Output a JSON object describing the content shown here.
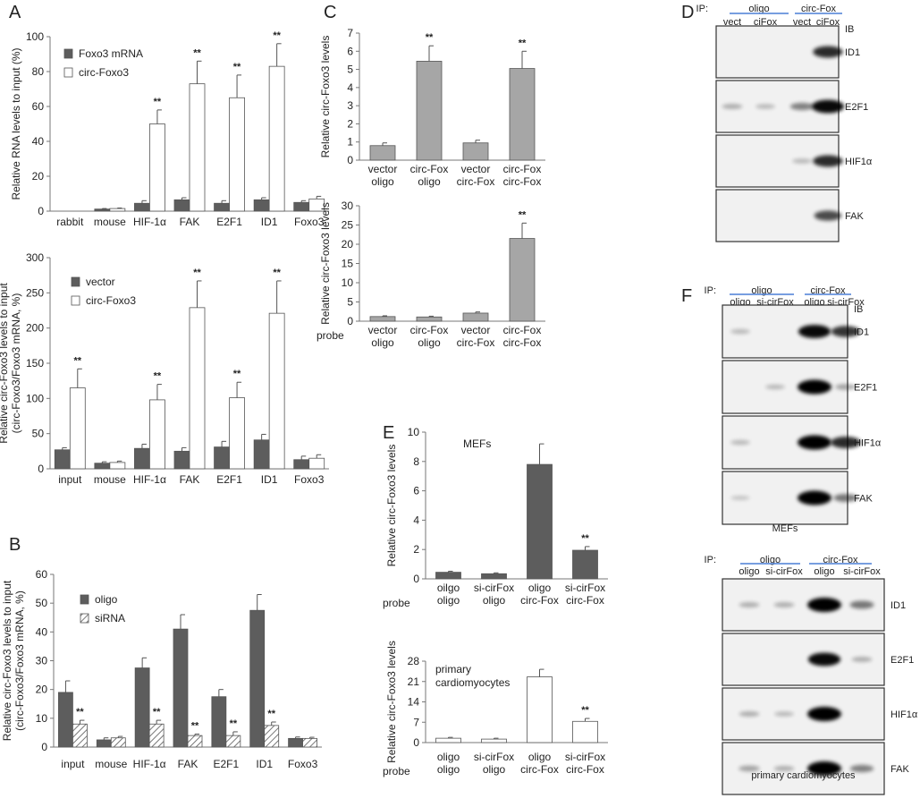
{
  "panels": {
    "A": "A",
    "B": "B",
    "C": "C",
    "D": "D",
    "E": "E",
    "F": "F"
  },
  "colors": {
    "dark_bar": "#5d5d5d",
    "light_bar": "#ffffff",
    "grey_bar": "#a6a6a6",
    "blot_bg": "#f1f1f1",
    "underline": "#4a7fd6"
  },
  "charts": [
    {
      "id": "A1",
      "type": "bar",
      "ylabel": "Relative RNA levels to input (%)",
      "ylim": [
        0,
        100
      ],
      "yticks": [
        0,
        20,
        40,
        60,
        80,
        100
      ],
      "categories": [
        "rabbit",
        "mouse",
        "HIF-1α",
        "FAK",
        "E2F1",
        "ID1",
        "Foxo3"
      ],
      "series": [
        {
          "name": "Foxo3 mRNA",
          "style": "dark",
          "values": [
            0,
            1.2,
            4.5,
            6.5,
            4.5,
            6.5,
            5
          ],
          "errors": [
            0,
            0.3,
            1.5,
            1.2,
            1.5,
            1.2,
            1
          ]
        },
        {
          "name": "circ-Foxo3",
          "style": "light",
          "values": [
            0,
            1.5,
            50,
            73,
            65,
            83,
            7
          ],
          "errors": [
            0,
            0.3,
            8,
            13,
            13,
            13,
            1.5
          ]
        }
      ],
      "sig": [
        "",
        "",
        "**",
        "**",
        "**",
        "**",
        ""
      ]
    },
    {
      "id": "A2",
      "type": "bar",
      "ylabel": "Relative circ-Foxo3 levels to input\n(circ-Foxo3/Foxo3 mRNA, %)",
      "ylim": [
        0,
        300
      ],
      "yticks": [
        0,
        50,
        100,
        150,
        200,
        250,
        300
      ],
      "categories": [
        "input",
        "mouse",
        "HIF-1α",
        "FAK",
        "E2F1",
        "ID1",
        "Foxo3"
      ],
      "series": [
        {
          "name": "vector",
          "style": "dark",
          "values": [
            27,
            8,
            29,
            25,
            31,
            41,
            13
          ],
          "errors": [
            3,
            2,
            6,
            5,
            8,
            8,
            5
          ]
        },
        {
          "name": "circ-Foxo3",
          "style": "light",
          "values": [
            115,
            9,
            98,
            229,
            101,
            221,
            15
          ],
          "errors": [
            27,
            2,
            22,
            38,
            22,
            46,
            5
          ]
        }
      ],
      "sig": [
        "**",
        "",
        "**",
        "**",
        "**",
        "**",
        ""
      ]
    },
    {
      "id": "B",
      "type": "bar",
      "ylabel": "Relative circ-Foxo3 levels to input\n(circ-Foxo3/Foxo3 mRNA, %)",
      "ylim": [
        0,
        60
      ],
      "yticks": [
        0,
        10,
        20,
        30,
        40,
        50,
        60
      ],
      "categories": [
        "input",
        "mouse",
        "HIF-1α",
        "FAK",
        "E2F1",
        "ID1",
        "Foxo3"
      ],
      "series": [
        {
          "name": "oligo",
          "style": "dark",
          "values": [
            19,
            2.5,
            27.5,
            41,
            17.5,
            47.5,
            3
          ],
          "errors": [
            4,
            0.7,
            3.5,
            5,
            2.5,
            5.5,
            0.5
          ]
        },
        {
          "name": "siRNA",
          "style": "hatch",
          "values": [
            8,
            3.2,
            8,
            4,
            4,
            7.5,
            3
          ],
          "errors": [
            1.3,
            0.5,
            1.3,
            0.5,
            1.3,
            1.2,
            0.4
          ]
        }
      ],
      "sig": [
        "**",
        "",
        "**",
        "**",
        "**",
        "**",
        ""
      ]
    },
    {
      "id": "C1",
      "type": "bar",
      "ylabel": "Relative circ-Foxo3 levels",
      "ylim": [
        0,
        7
      ],
      "yticks": [
        0,
        1,
        2,
        3,
        4,
        5,
        6,
        7
      ],
      "categories": [
        "vector\noligo",
        "circ-Fox\noligo",
        "vector\ncirc-Fox",
        "circ-Fox\ncirc-Fox"
      ],
      "series": [
        {
          "name": "",
          "style": "grey",
          "values": [
            0.8,
            5.45,
            0.95,
            5.05
          ],
          "errors": [
            0.15,
            0.85,
            0.15,
            0.95
          ]
        }
      ],
      "sig": [
        "",
        "**",
        "",
        "**"
      ]
    },
    {
      "id": "C2",
      "type": "bar",
      "ylabel": "Relative circ-Foxo3 levels",
      "probe_label": "probe",
      "ylim": [
        0,
        30
      ],
      "yticks": [
        0,
        5,
        10,
        15,
        20,
        25,
        30
      ],
      "categories": [
        "vector\noligo",
        "circ-Fox\noligo",
        "vector\ncirc-Fox",
        "circ-Fox\ncirc-Fox"
      ],
      "series": [
        {
          "name": "",
          "style": "grey",
          "values": [
            1.2,
            1.1,
            2.1,
            21.5
          ],
          "errors": [
            0.2,
            0.2,
            0.3,
            4
          ]
        }
      ],
      "sig": [
        "",
        "",
        "",
        "**"
      ]
    },
    {
      "id": "E1",
      "type": "bar",
      "ylabel": "Relative circ-Foxo3 levels",
      "inner_label": "MEFs",
      "probe_label": "probe",
      "ylim": [
        0,
        10
      ],
      "yticks": [
        0,
        2,
        4,
        6,
        8,
        10
      ],
      "categories": [
        "oilgo\noligo",
        "si-cirFox\noligo",
        "oligo\ncirc-Fox",
        "si-cirFox\ncirc-Fox"
      ],
      "series": [
        {
          "name": "",
          "style": "dark",
          "values": [
            0.45,
            0.35,
            7.8,
            1.95
          ],
          "errors": [
            0.07,
            0.06,
            1.4,
            0.25
          ]
        }
      ],
      "sig": [
        "",
        "",
        "",
        "**"
      ]
    },
    {
      "id": "E2",
      "type": "bar",
      "ylabel": "Relative circ-Foxo3 levels",
      "inner_label": "primary\ncardiomyocytes",
      "probe_label": "probe",
      "ylim": [
        0,
        28
      ],
      "yticks": [
        0,
        7,
        14,
        21,
        28
      ],
      "categories": [
        "oligo\noligo",
        "si-cirFox\noligo",
        "oligo\ncirc-Fox",
        "si-cirFox\ncirc-Fox"
      ],
      "series": [
        {
          "name": "",
          "style": "light",
          "values": [
            1.5,
            1.2,
            22.6,
            7.3
          ],
          "errors": [
            0.3,
            0.3,
            2.6,
            1
          ]
        }
      ],
      "sig": [
        "",
        "",
        "",
        "**"
      ]
    }
  ],
  "blots": {
    "D": {
      "ip": "IP:",
      "groups": [
        "oligo",
        "circ-Fox"
      ],
      "lanes": [
        "vect",
        "ciFox",
        "vect",
        "ciFox"
      ],
      "ib": "IB",
      "rows": [
        {
          "label": "ID1",
          "bands": [
            0,
            0,
            0,
            0.75
          ]
        },
        {
          "label": "E2F1",
          "bands": [
            0.15,
            0.1,
            0.35,
            0.9
          ]
        },
        {
          "label": "HIF1α",
          "bands": [
            0,
            0,
            0.1,
            0.75
          ]
        },
        {
          "label": "FAK",
          "bands": [
            0,
            0,
            0,
            0.6
          ]
        }
      ]
    },
    "F1": {
      "ip": "IP:",
      "groups": [
        "oligo",
        "circ-Fox"
      ],
      "lanes": [
        "oligo",
        "si-cirFox",
        "oligo",
        "si-cirFox"
      ],
      "ib": "IB",
      "caption": "MEFs",
      "rows": [
        {
          "label": "ID1",
          "bands": [
            0.1,
            0,
            0.9,
            0.7
          ]
        },
        {
          "label": "E2F1",
          "bands": [
            0,
            0.1,
            1,
            0.2
          ]
        },
        {
          "label": "HIF1α",
          "bands": [
            0.1,
            0,
            1,
            0.75
          ]
        },
        {
          "label": "FAK",
          "bands": [
            0.05,
            0,
            1,
            0.4
          ]
        }
      ]
    },
    "F2": {
      "ip": "IP:",
      "groups": [
        "oligo",
        "circ-Fox"
      ],
      "lanes": [
        "oligo",
        "si-cirFox",
        "oligo",
        "si-cirFox"
      ],
      "caption": "primary cardiomyocytes",
      "rows": [
        {
          "label": "ID1",
          "bands": [
            0.15,
            0.15,
            1,
            0.4
          ]
        },
        {
          "label": "E2F1",
          "bands": [
            0,
            0,
            0.9,
            0.15
          ]
        },
        {
          "label": "HIF1α",
          "bands": [
            0.15,
            0.1,
            1,
            0
          ]
        },
        {
          "label": "FAK",
          "bands": [
            0.2,
            0.15,
            1,
            0.35
          ]
        }
      ]
    }
  }
}
